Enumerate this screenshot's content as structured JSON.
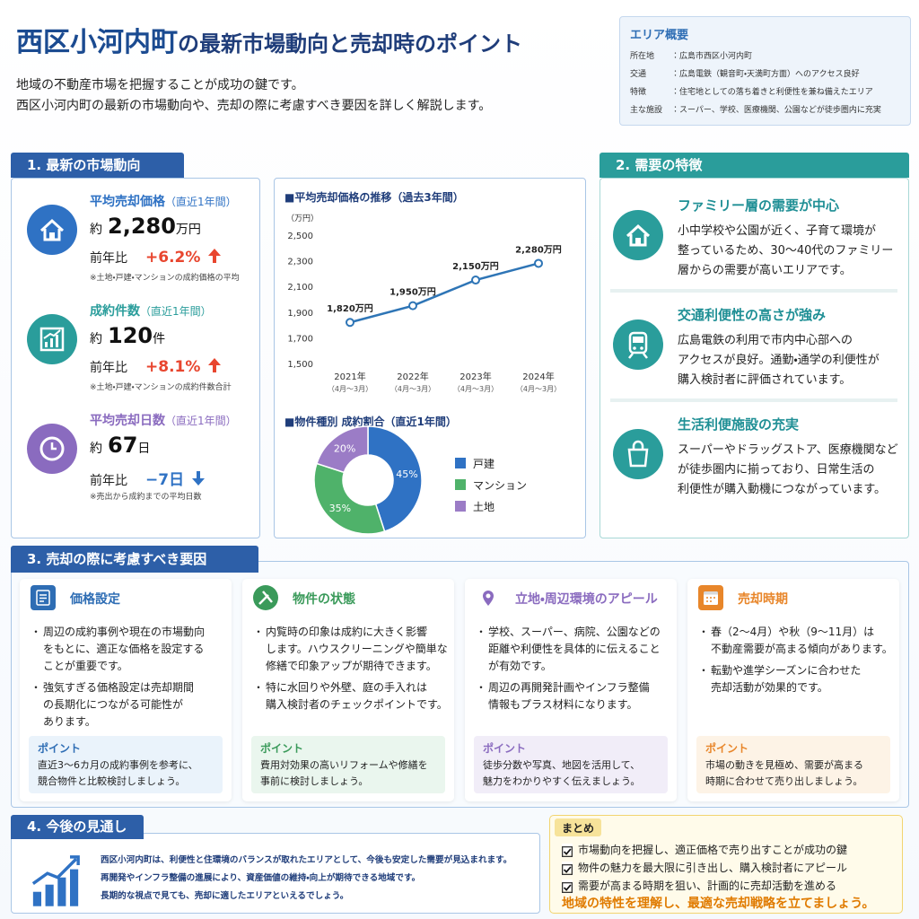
{
  "header": {
    "title_main": "西区小河内町",
    "title_rest": "の最新市場動向と売却時のポイント",
    "intro": [
      "地域の不動産市場を把握することが成功の鍵です。",
      "西区小河内町の最新の市場動向や、売却の際に考慮すべき要因を詳しく解説します。"
    ]
  },
  "area_overview": {
    "title": "エリア概要",
    "rows": [
      {
        "label": "所在地",
        "value": "：広島市西区小河内町"
      },
      {
        "label": "交通",
        "value": "：広島電鉄（観音町・天満町方面）へのアクセス良好"
      },
      {
        "label": "特徴",
        "value": "：住宅地としての落ち着きと利便性を兼ね備えたエリア"
      },
      {
        "label": "主な施設",
        "value": "：スーパー、学校、医療機関、公園などが徒歩圏内に充実"
      }
    ]
  },
  "section1": {
    "title": "1. 最新の市場動向",
    "stats": [
      {
        "label": "平均売却価格",
        "period": "（直近1年間）",
        "prefix": "約",
        "value": "2,280",
        "unit": "万円",
        "yoy_label": "前年比",
        "yoy": "+6.2%",
        "note": "※土地・戸建・マンションの成約価格の平均"
      },
      {
        "label": "成約件数",
        "period": "（直近1年間）",
        "prefix": "約",
        "value": "120",
        "unit": "件",
        "yoy_label": "前年比",
        "yoy": "+8.1%",
        "note": "※土地・戸建・マンションの成約件数合計"
      },
      {
        "label": "平均売却日数",
        "period": "（直近1年間）",
        "prefix": "約",
        "value": "67",
        "unit": "日",
        "yoy_label": "前年比",
        "yoy": "−7日",
        "note": "※売出から成約までの平均日数"
      }
    ]
  },
  "chart_data": [
    {
      "type": "line",
      "title": "■平均売却価格の推移（過去3年間）",
      "y_label": "（万円）",
      "categories": [
        "2021年",
        "2022年",
        "2023年",
        "2024年"
      ],
      "category_sublabels": [
        "（4月～3月）",
        "（4月～3月）",
        "（4月～3月）",
        "（4月～3月）"
      ],
      "series": [
        {
          "color": "#2e75b6",
          "values": [
            1820,
            1950,
            2150,
            2280
          ],
          "value_labels": [
            "1,820万円",
            "1,950万円",
            "2,150万円",
            "2,280万円"
          ]
        }
      ],
      "ylim": [
        1500,
        2500
      ],
      "yticks": [
        {
          "value": 1500,
          "label": "1,500"
        },
        {
          "value": 1700,
          "label": "1,700"
        },
        {
          "value": 1900,
          "label": "1,900"
        },
        {
          "value": 2100,
          "label": "2,100"
        },
        {
          "value": 2300,
          "label": "2,300"
        },
        {
          "value": 2500,
          "label": "2,500"
        }
      ],
      "grid": false
    },
    {
      "type": "pie",
      "title": "■物件種別 成約割合（直近1年間）",
      "categories": [
        "戸建",
        "マンション",
        "土地"
      ],
      "values": [
        45,
        35,
        20
      ],
      "value_labels": [
        "45%",
        "35%",
        "20%"
      ],
      "colors": [
        "#2f72c4",
        "#4fb26a",
        "#9b7cc6"
      ],
      "donut": true
    }
  ],
  "section2": {
    "title": "2. 需要の特徴",
    "items": [
      {
        "heading": "ファミリー層の需要が中心",
        "lines": [
          "小中学校や公園が近く、子育て環境が",
          "整っているため、30～40代のファミリー",
          "層からの需要が高いエリアです。"
        ]
      },
      {
        "heading": "交通利便性の高さが強み",
        "lines": [
          "広島電鉄の利用で市内中心部への",
          "アクセスが良好。通勤・通学の利便性が",
          "購入検討者に評価されています。"
        ]
      },
      {
        "heading": "生活利便施設の充実",
        "lines": [
          "スーパーやドラッグストア、医療機関など",
          "が徒歩圏内に揃っており、日常生活の",
          "利便性が購入動機につながっています。"
        ]
      }
    ]
  },
  "section3": {
    "title": "3. 売却の際に考慮すべき要因",
    "cards": [
      {
        "heading": "価格設定",
        "bullets": [
          [
            "周辺の成約事例や現在の市場動向",
            "をもとに、適正な価格を設定する",
            "ことが重要です。"
          ],
          [
            "強気すぎる価格設定は売却期間",
            "の長期化につながる可能性が",
            "あります。"
          ]
        ],
        "point_label": "ポイント",
        "point": [
          "直近3～6カ月の成約事例を参考に、",
          "競合物件と比較検討しましょう。"
        ]
      },
      {
        "heading": "物件の状態",
        "bullets": [
          [
            "内覧時の印象は成約に大きく影響",
            "します。ハウスクリーニングや簡単な",
            "修繕で印象アップが期待できます。"
          ],
          [
            "特に水回りや外壁、庭の手入れは",
            "購入検討者のチェックポイントです。"
          ]
        ],
        "point_label": "ポイント",
        "point": [
          "費用対効果の高いリフォームや修繕を",
          "事前に検討しましょう。"
        ]
      },
      {
        "heading": "立地・周辺環境のアピール",
        "bullets": [
          [
            "学校、スーパー、病院、公園などの",
            "距離や利便性を具体的に伝えること",
            "が有効です。"
          ],
          [
            "周辺の再開発計画やインフラ整備",
            "情報もプラス材料になります。"
          ]
        ],
        "point_label": "ポイント",
        "point": [
          "徒歩分数や写真、地図を活用して、",
          "魅力をわかりやすく伝えましょう。"
        ]
      },
      {
        "heading": "売却時期",
        "bullets": [
          [
            "春（2～4月）や秋（9～11月）は",
            "不動産需要が高まる傾向があります。"
          ],
          [
            "転勤や進学シーズンに合わせた",
            "売却活動が効果的です。"
          ]
        ],
        "point_label": "ポイント",
        "point": [
          "市場の動きを見極め、需要が高まる",
          "時期に合わせて売り出しましょう。"
        ]
      }
    ]
  },
  "section4": {
    "title": "4. 今後の見通し",
    "lines": [
      "西区小河内町は、利便性と住環境のバランスが取れたエリアとして、今後も安定した需要が見込まれます。",
      "再開発やインフラ整備の進展により、資産価値の維持・向上が期待できる地域です。",
      "長期的な視点で見ても、売却に適したエリアといえるでしょう。"
    ]
  },
  "summary": {
    "title": "まとめ",
    "items": [
      "市場動向を把握し、適正価格で売り出すことが成功の鍵",
      "物件の魅力を最大限に引き出し、購入検討者にアピール",
      "需要が高まる時期を狙い、計画的に売却活動を進める"
    ],
    "conclusion": "地域の特性を理解し、最適な売却戦略を立てましょう。"
  }
}
